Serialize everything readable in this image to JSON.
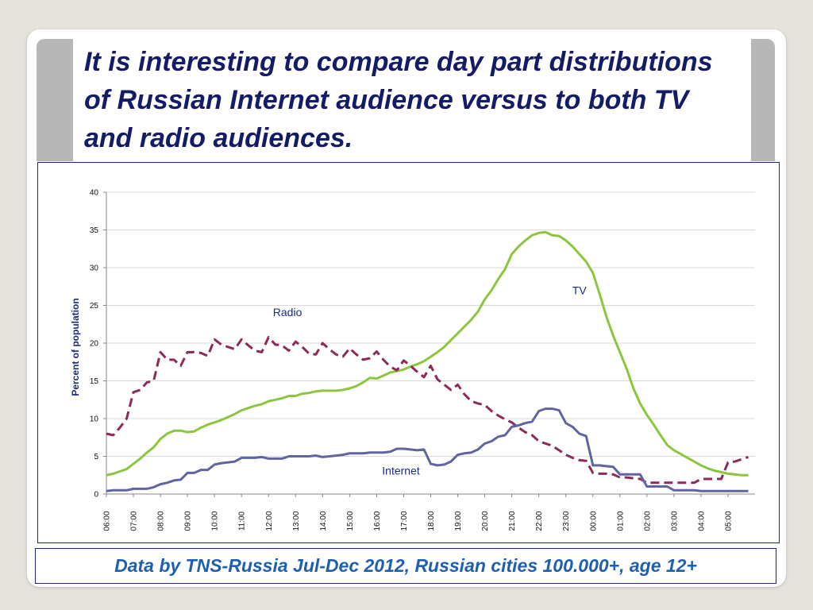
{
  "slide": {
    "title": "It is interesting to compare day part distributions of Russian Internet audience versus to both TV and radio audiences.",
    "caption": "Data by TNS-Russia Jul-Dec 2012, Russian cities 100.000+, age 12+"
  },
  "colors": {
    "title": "#141b67",
    "caption": "#1f5fb0",
    "frame": "#1c2a80",
    "gridline": "#d8d8d8"
  },
  "chart_data": {
    "type": "line",
    "title": "",
    "xlabel": "",
    "ylabel": "Percent of population",
    "ylim": [
      0,
      40
    ],
    "yticks": [
      0,
      5,
      10,
      15,
      20,
      25,
      30,
      35,
      40
    ],
    "grid": true,
    "x_tick_labels": [
      "06:00",
      "07:00",
      "08:00",
      "09:00",
      "10:00",
      "11:00",
      "12:00",
      "13:00",
      "14:00",
      "15:00",
      "16:00",
      "17:00",
      "18:00",
      "19:00",
      "20:00",
      "21:00",
      "22:00",
      "23:00",
      "00:00",
      "01:00",
      "02:00",
      "03:00",
      "04:00",
      "05:00"
    ],
    "x_hours": [
      6.0,
      6.25,
      6.5,
      6.75,
      7.0,
      7.25,
      7.5,
      7.75,
      8.0,
      8.25,
      8.5,
      8.75,
      9.0,
      9.25,
      9.5,
      9.75,
      10.0,
      10.25,
      10.5,
      10.75,
      11.0,
      11.25,
      11.5,
      11.75,
      12.0,
      12.25,
      12.5,
      12.75,
      13.0,
      13.25,
      13.5,
      13.75,
      14.0,
      14.25,
      14.5,
      14.75,
      15.0,
      15.25,
      15.5,
      15.75,
      16.0,
      16.25,
      16.5,
      16.75,
      17.0,
      17.25,
      17.5,
      17.75,
      18.0,
      18.25,
      18.5,
      18.75,
      19.0,
      19.25,
      19.5,
      19.75,
      20.0,
      20.25,
      20.5,
      20.75,
      21.0,
      21.25,
      21.5,
      21.75,
      22.0,
      22.25,
      22.5,
      22.75,
      23.0,
      23.25,
      23.5,
      23.75,
      24.0,
      24.25,
      24.5,
      24.75,
      25.0,
      25.25,
      25.5,
      25.75,
      26.0,
      26.25,
      26.5,
      26.75,
      27.0,
      27.25,
      27.5,
      27.75,
      28.0,
      28.25,
      28.5,
      28.75,
      29.0,
      29.25,
      29.5,
      29.75
    ],
    "series": [
      {
        "name": "TV",
        "color": "#8cc63f",
        "style": "solid",
        "values": [
          2.5,
          2.7,
          3.0,
          3.3,
          4.0,
          4.7,
          5.5,
          6.2,
          7.3,
          8.0,
          8.4,
          8.4,
          8.2,
          8.3,
          8.8,
          9.2,
          9.5,
          9.8,
          10.2,
          10.6,
          11.1,
          11.4,
          11.7,
          11.9,
          12.3,
          12.5,
          12.7,
          13.0,
          13.0,
          13.3,
          13.4,
          13.6,
          13.7,
          13.7,
          13.7,
          13.8,
          14.0,
          14.3,
          14.8,
          15.4,
          15.3,
          15.7,
          16.1,
          16.3,
          16.5,
          16.9,
          17.2,
          17.6,
          18.2,
          18.8,
          19.5,
          20.4,
          21.3,
          22.2,
          23.1,
          24.2,
          25.8,
          27.0,
          28.5,
          29.8,
          31.8,
          32.8,
          33.6,
          34.3,
          34.6,
          34.7,
          34.3,
          34.2,
          33.6,
          32.8,
          31.8,
          30.8,
          29.3,
          26.5,
          23.5,
          21.0,
          18.8,
          16.6,
          14.0,
          12.0,
          10.5,
          9.2,
          7.8,
          6.5,
          5.8,
          5.3,
          4.8,
          4.3,
          3.8,
          3.4,
          3.1,
          2.9,
          2.7,
          2.6,
          2.5,
          2.5
        ]
      },
      {
        "name": "Radio",
        "color": "#8c2a5a",
        "style": "dashed",
        "values": [
          8.0,
          7.8,
          8.8,
          10.0,
          13.5,
          13.8,
          14.8,
          15.0,
          18.8,
          17.8,
          17.8,
          17.0,
          18.8,
          18.8,
          18.7,
          18.3,
          20.5,
          19.8,
          19.5,
          19.2,
          20.5,
          19.7,
          19.0,
          18.8,
          20.8,
          19.8,
          19.7,
          19.0,
          20.2,
          19.5,
          18.6,
          18.5,
          20.0,
          19.2,
          18.5,
          18.2,
          19.3,
          18.5,
          17.8,
          18.0,
          18.9,
          17.8,
          16.9,
          16.4,
          17.7,
          17.0,
          16.2,
          15.5,
          17.0,
          15.2,
          14.5,
          13.8,
          14.5,
          13.2,
          12.3,
          12.0,
          11.8,
          11.0,
          10.4,
          9.9,
          9.5,
          8.8,
          8.2,
          7.8,
          7.0,
          6.7,
          6.4,
          5.8,
          5.2,
          4.8,
          4.5,
          4.4,
          2.8,
          2.7,
          2.7,
          2.6,
          2.2,
          2.2,
          2.1,
          2.0,
          1.5,
          1.5,
          1.5,
          1.5,
          1.5,
          1.5,
          1.5,
          1.5,
          2.0,
          2.0,
          2.0,
          2.0,
          4.2,
          4.3,
          4.6,
          4.9
        ]
      },
      {
        "name": "Internet",
        "color": "#6064a0",
        "style": "solid",
        "values": [
          0.4,
          0.5,
          0.5,
          0.5,
          0.7,
          0.7,
          0.7,
          0.9,
          1.3,
          1.5,
          1.8,
          1.9,
          2.8,
          2.8,
          3.2,
          3.2,
          3.9,
          4.1,
          4.2,
          4.3,
          4.8,
          4.8,
          4.8,
          4.9,
          4.7,
          4.7,
          4.7,
          5.0,
          5.0,
          5.0,
          5.0,
          5.1,
          4.9,
          5.0,
          5.1,
          5.2,
          5.4,
          5.4,
          5.4,
          5.5,
          5.5,
          5.5,
          5.6,
          6.0,
          6.0,
          5.9,
          5.8,
          5.9,
          4.0,
          3.8,
          3.9,
          4.3,
          5.2,
          5.4,
          5.5,
          5.9,
          6.7,
          7.0,
          7.6,
          7.8,
          8.9,
          9.1,
          9.4,
          9.6,
          11.0,
          11.3,
          11.3,
          11.1,
          9.4,
          8.9,
          8.0,
          7.7,
          3.8,
          3.8,
          3.7,
          3.6,
          2.6,
          2.6,
          2.6,
          2.6,
          1.0,
          1.0,
          1.0,
          1.0,
          0.5,
          0.5,
          0.5,
          0.5,
          0.4,
          0.4,
          0.4,
          0.4,
          0.4,
          0.4,
          0.4,
          0.4
        ]
      }
    ],
    "annotations": [
      {
        "text": "TV",
        "series": "TV",
        "x": 23.5,
        "y": 26.5
      },
      {
        "text": "Radio",
        "series": "Radio",
        "x": 12.7,
        "y": 23.6
      },
      {
        "text": "Internet",
        "series": "Internet",
        "x": 16.9,
        "y": 2.6
      }
    ]
  }
}
